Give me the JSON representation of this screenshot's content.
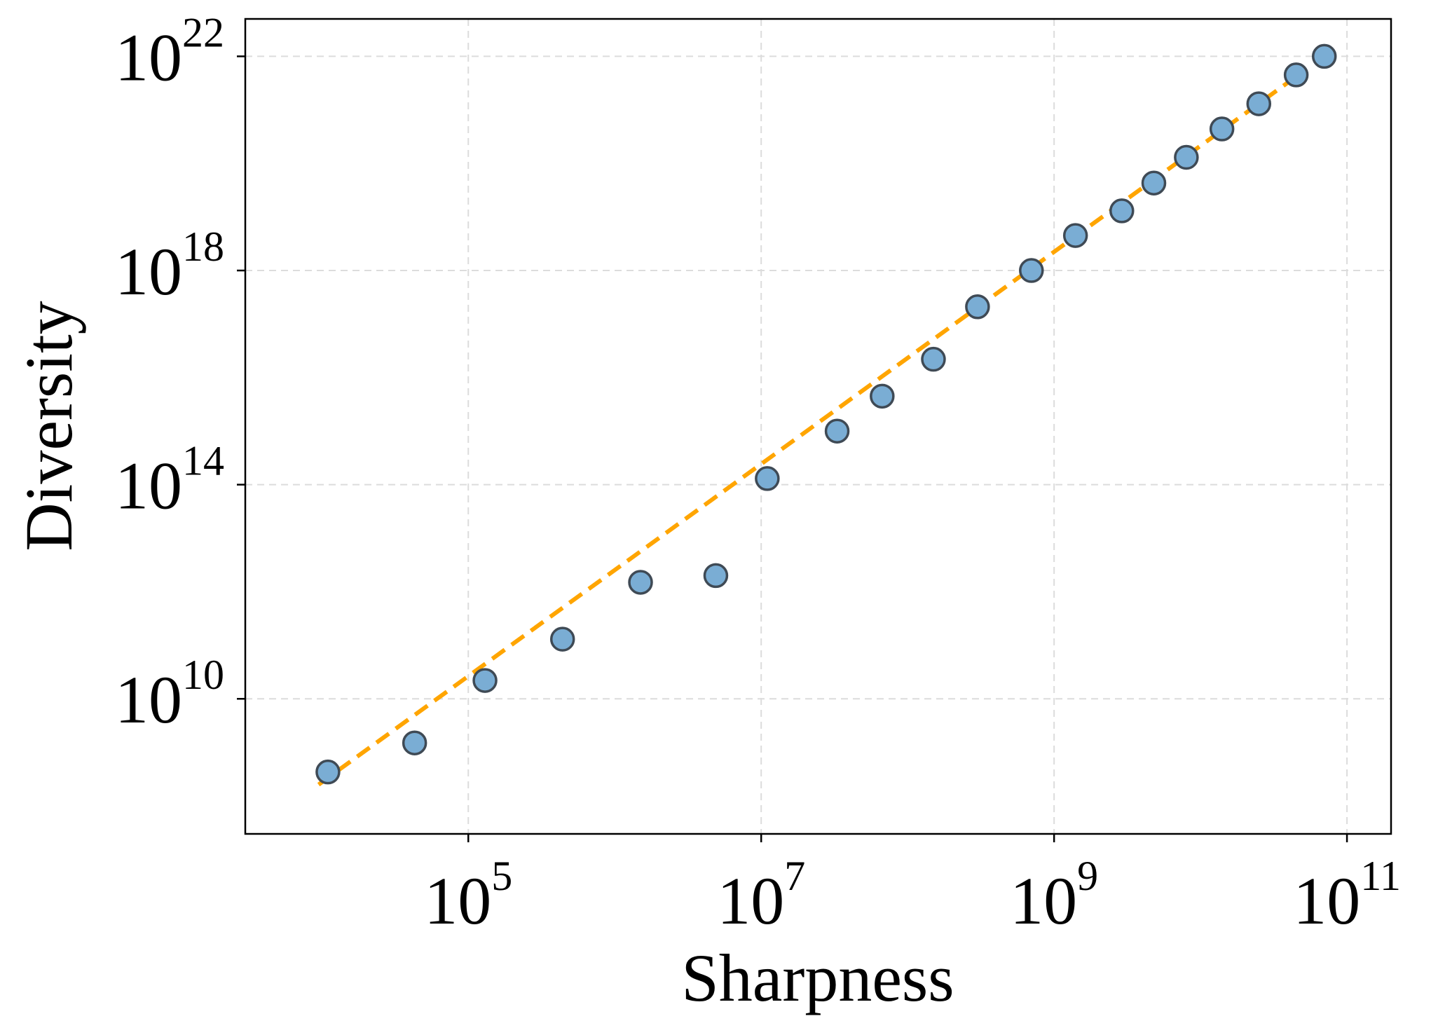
{
  "chart_data": {
    "type": "scatter",
    "title": "",
    "xlabel": "Sharpness",
    "ylabel": "Diversity",
    "x_scale": "log",
    "y_scale": "log",
    "xlim": [
      3000,
      200000000000
    ],
    "ylim": [
      30000000,
      50000000000000000000000
    ],
    "grid": true,
    "x_ticks": [
      {
        "value": 100000,
        "base": "10",
        "exp": "5"
      },
      {
        "value": 10000000,
        "base": "10",
        "exp": "7"
      },
      {
        "value": 1000000000,
        "base": "10",
        "exp": "9"
      },
      {
        "value": 100000000000,
        "base": "10",
        "exp": "11"
      }
    ],
    "y_ticks": [
      {
        "value": 10000000000,
        "base": "10",
        "exp": "10"
      },
      {
        "value": 100000000000000,
        "base": "10",
        "exp": "14"
      },
      {
        "value": 1000000000000000000,
        "base": "10",
        "exp": "18"
      },
      {
        "value": 10000000000000000000000,
        "base": "10",
        "exp": "22"
      }
    ],
    "series": [
      {
        "marker_color": "#7aadd4",
        "marker_edge_color": "#3f4a55",
        "points": [
          {
            "x": 11000,
            "y": 430000000
          },
          {
            "x": 43000,
            "y": 1500000000
          },
          {
            "x": 130000,
            "y": 22000000000
          },
          {
            "x": 440000,
            "y": 130000000000
          },
          {
            "x": 1500000,
            "y": 1500000000000
          },
          {
            "x": 4900000,
            "y": 2000000000000
          },
          {
            "x": 11000000,
            "y": 130000000000000
          },
          {
            "x": 33000000,
            "y": 1000000000000000
          },
          {
            "x": 67000000,
            "y": 4500000000000000
          },
          {
            "x": 150000000,
            "y": 22000000000000000
          },
          {
            "x": 300000000,
            "y": 210000000000000000
          },
          {
            "x": 700000000,
            "y": 1000000000000000000
          },
          {
            "x": 1400000000,
            "y": 4500000000000000000
          },
          {
            "x": 2900000000,
            "y": 13000000000000000000
          },
          {
            "x": 4800000000,
            "y": 43000000000000000000
          },
          {
            "x": 8000000000,
            "y": 130000000000000000000
          },
          {
            "x": 14000000000,
            "y": 440000000000000000000
          },
          {
            "x": 25000000000,
            "y": 1300000000000000000000
          },
          {
            "x": 45000000000,
            "y": 4500000000000000000000
          },
          {
            "x": 70000000000,
            "y": 10000000000000000000000
          }
        ]
      }
    ],
    "fit_line": {
      "style": "dashed",
      "color": "#ffa500",
      "points": [
        {
          "x": 9500,
          "y": 250000000
        },
        {
          "x": 45000000000,
          "y": 4200000000000000000000
        }
      ]
    }
  }
}
